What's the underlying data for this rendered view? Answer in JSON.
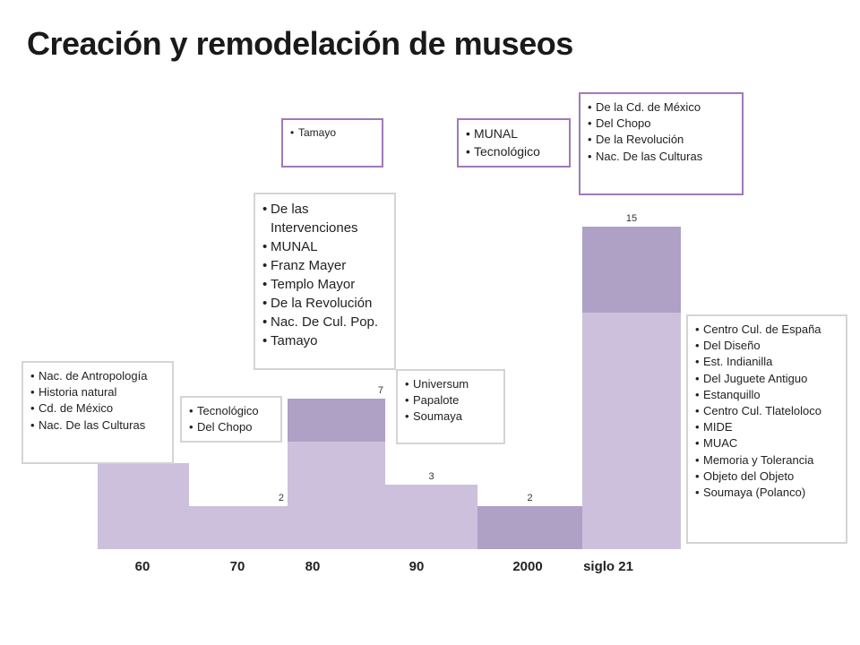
{
  "title": "Creación y remodelación de museos",
  "colors": {
    "creacion": "#ccc0dc",
    "remodelacion": "#afa0c6"
  },
  "chart_data": {
    "type": "bar",
    "stacked": true,
    "categories": [
      "60",
      "70",
      "80",
      "90",
      "2000",
      "siglo 21"
    ],
    "totals": [
      4,
      2,
      7,
      3,
      2,
      15
    ],
    "series": [
      {
        "values": [
          4,
          2,
          5,
          3,
          0,
          11
        ]
      },
      {
        "values": [
          0,
          0,
          2,
          0,
          2,
          4
        ]
      }
    ],
    "ylim": [
      0,
      17.5
    ],
    "grid": false
  },
  "boxes": {
    "b60": [
      "Nac. de Antropología",
      "Historia natural",
      "Cd. de México",
      "Nac. De las Culturas"
    ],
    "b70": [
      "Tecnológico",
      "Del Chopo"
    ],
    "b80": [
      "De las Intervenciones",
      "MUNAL",
      "Franz Mayer",
      "Templo Mayor",
      "De la Revolución",
      "Nac. De Cul. Pop.",
      "Tamayo"
    ],
    "b80r": [
      "Tamayo"
    ],
    "b90": [
      "Universum",
      "Papalote",
      "Soumaya"
    ],
    "b2000r": [
      "MUNAL",
      "Tecnológico"
    ],
    "b21r": [
      "De la Cd. de México",
      "Del Chopo",
      "De la Revolución",
      "Nac. De las Culturas"
    ],
    "b21": [
      "Centro Cul. de España",
      "Del Diseño",
      "Est. Indianilla",
      "Del Juguete Antiguo",
      "Estanquillo",
      "Centro Cul. Tlateloloco",
      "MIDE",
      "MUAC",
      "Memoria y Tolerancia",
      "Objeto del Objeto",
      "Soumaya (Polanco)"
    ]
  }
}
